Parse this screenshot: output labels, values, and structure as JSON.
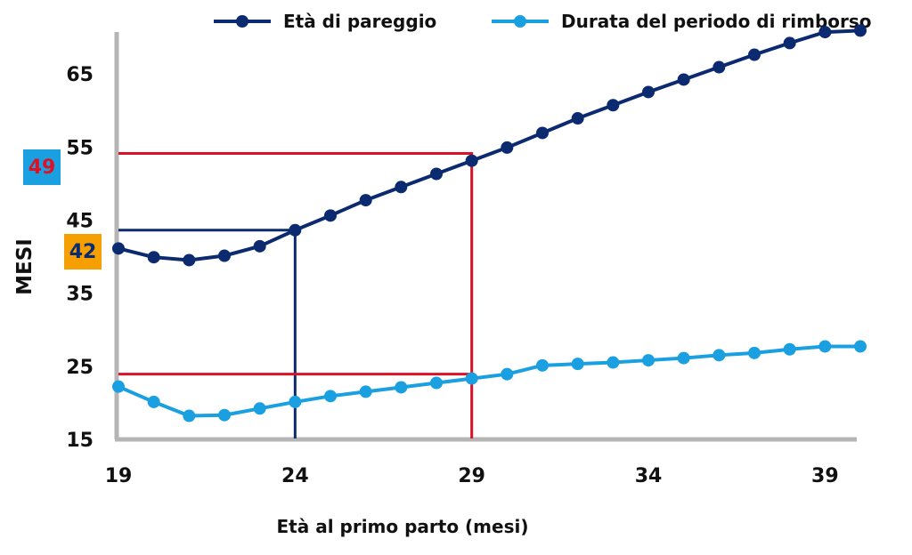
{
  "chart_data": {
    "type": "line",
    "xlabel": "Età al primo parto (mesi)",
    "ylabel": "MESI",
    "xlim": [
      19,
      40
    ],
    "ylim": [
      15,
      70
    ],
    "xticks": [
      19,
      24,
      29,
      34,
      39
    ],
    "yticks": [
      15,
      25,
      35,
      45,
      55,
      65
    ],
    "x": [
      19,
      20,
      21,
      22,
      23,
      24,
      25,
      26,
      27,
      28,
      29,
      30,
      31,
      32,
      33,
      34,
      35,
      36,
      37,
      38,
      39,
      40
    ],
    "series": [
      {
        "name": "Età di pareggio",
        "color": "#0b2a6f",
        "values": [
          41,
          39.8,
          39.4,
          40,
          41.3,
          43.5,
          45.5,
          47.6,
          49.4,
          51.2,
          53,
          54.8,
          56.8,
          58.8,
          60.6,
          62.4,
          64.1,
          65.8,
          67.5,
          69.1,
          70.6,
          70.8
        ]
      },
      {
        "name": "Durata del periodo di rimborso",
        "color": "#1aa0e0",
        "values": [
          22.1,
          20,
          18.1,
          18.2,
          19.1,
          20,
          20.8,
          21.4,
          22,
          22.6,
          23.2,
          23.8,
          25,
          25.2,
          25.4,
          25.7,
          26,
          26.4,
          26.7,
          27.2,
          27.6,
          27.6
        ]
      }
    ],
    "reference_lines": [
      {
        "label": "42",
        "color": "#0b2a6f",
        "badge_color": "#f5a000",
        "badge_text_color": "#0b2a6f",
        "x": 24,
        "y": 43.5
      },
      {
        "label": "49",
        "color": "#dd1126",
        "badge_color": "#1aa0e0",
        "badge_text_color": "#dd1126",
        "x": 29,
        "y": 54,
        "y2": 23.8
      }
    ],
    "grid": false,
    "legend_position": "top"
  }
}
